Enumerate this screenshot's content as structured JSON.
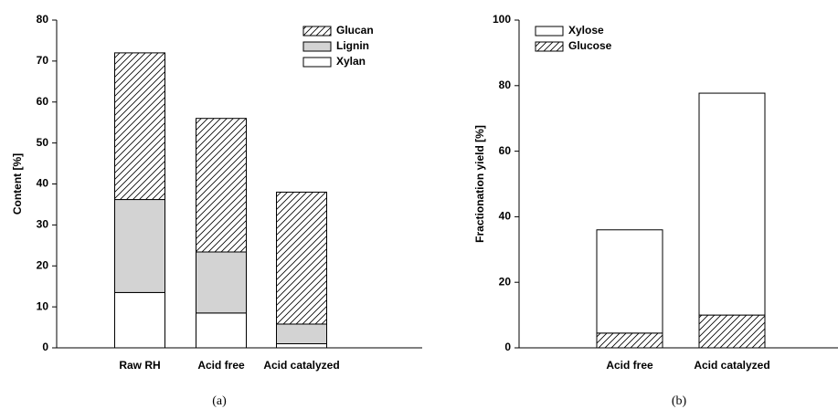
{
  "chart_data": [
    {
      "type": "stacked-bar",
      "ylabel": "Content [%]",
      "caption": "(a)",
      "categories": [
        "Raw RH",
        "Acid free",
        "Acid catalyzed"
      ],
      "series": [
        {
          "name": "Xylan",
          "color": "#ffffff",
          "values": [
            13.5,
            8.5,
            1.0
          ]
        },
        {
          "name": "Lignin",
          "color": "#d3d3d3",
          "values": [
            22.7,
            14.9,
            4.8
          ]
        },
        {
          "name": "Glucan",
          "color": "#ffffff",
          "pattern": "hatch",
          "values": [
            35.8,
            32.6,
            32.2
          ]
        }
      ],
      "ylim": [
        0,
        80
      ],
      "yticks": [
        0,
        10,
        20,
        30,
        40,
        50,
        60,
        70,
        80
      ],
      "legend": "upper right"
    },
    {
      "type": "stacked-bar",
      "ylabel": "Fractionation yield [%]",
      "caption": "(b)",
      "categories": [
        "Acid free",
        "Acid catalyzed"
      ],
      "series": [
        {
          "name": "Glucose",
          "color": "#ffffff",
          "pattern": "hatch",
          "values": [
            4.5,
            10.0
          ]
        },
        {
          "name": "Xylose",
          "color": "#ffffff",
          "values": [
            31.5,
            67.7
          ]
        }
      ],
      "ylim": [
        0,
        100
      ],
      "yticks": [
        0,
        20,
        40,
        60,
        80,
        100
      ],
      "legend": "upper left"
    }
  ]
}
